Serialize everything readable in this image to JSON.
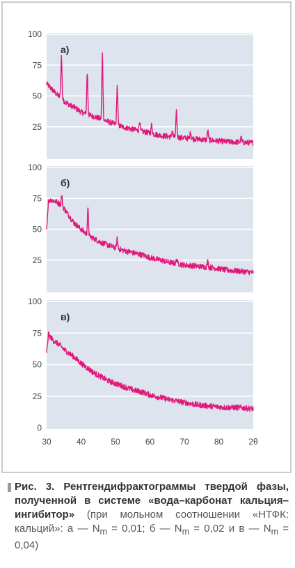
{
  "chart_data": [
    {
      "type": "line",
      "panel_label": "а)",
      "ylim": [
        0,
        100
      ],
      "xlim": [
        30,
        90
      ],
      "ytick_labels": [
        "100",
        "75",
        "50",
        "25"
      ],
      "color": "#e0187a",
      "series": [
        {
          "x": [
            30,
            31,
            32,
            33,
            34,
            35,
            36,
            37,
            38,
            39,
            40,
            42,
            44,
            46,
            48,
            50,
            52,
            55,
            58,
            60,
            63,
            66,
            70,
            74,
            78,
            82,
            86,
            90
          ],
          "values": [
            60,
            57,
            54,
            51,
            49,
            46,
            44,
            42,
            41,
            39,
            37,
            35,
            33,
            31,
            29,
            27,
            25,
            23,
            21,
            20,
            18,
            17,
            16,
            15,
            14,
            13,
            12.5,
            12
          ]
        }
      ],
      "peaks": [
        {
          "x": 34.3,
          "y": 82
        },
        {
          "x": 41.8,
          "y": 69
        },
        {
          "x": 46.2,
          "y": 84
        },
        {
          "x": 50.5,
          "y": 58
        },
        {
          "x": 57.0,
          "y": 30
        },
        {
          "x": 60.5,
          "y": 27
        },
        {
          "x": 66.5,
          "y": 22
        },
        {
          "x": 67.7,
          "y": 37
        },
        {
          "x": 71.8,
          "y": 21
        },
        {
          "x": 76.8,
          "y": 22
        },
        {
          "x": 86.5,
          "y": 16
        }
      ]
    },
    {
      "type": "line",
      "panel_label": "б)",
      "ylim": [
        0,
        100
      ],
      "xlim": [
        30,
        90
      ],
      "ytick_labels": [
        "100",
        "75",
        "50",
        "25"
      ],
      "color": "#e0187a",
      "series": [
        {
          "x": [
            30,
            30.5,
            31,
            32,
            33,
            34,
            35,
            36,
            37,
            38,
            40,
            42,
            44,
            46,
            48,
            50,
            52,
            55,
            58,
            60,
            63,
            66,
            70,
            74,
            78,
            82,
            86,
            90
          ],
          "values": [
            50,
            72,
            74,
            73,
            72,
            70,
            67,
            63,
            59,
            55,
            50,
            45,
            42,
            39,
            37,
            35,
            33,
            31,
            29,
            27,
            25,
            23,
            21,
            20,
            19,
            17,
            16,
            15
          ]
        }
      ],
      "peaks": [
        {
          "x": 34.4,
          "y": 77
        },
        {
          "x": 42.0,
          "y": 66
        },
        {
          "x": 50.5,
          "y": 42
        },
        {
          "x": 67.8,
          "y": 26
        },
        {
          "x": 76.8,
          "y": 24
        }
      ]
    },
    {
      "type": "line",
      "panel_label": "в)",
      "ylim": [
        0,
        100
      ],
      "xlim": [
        30,
        90
      ],
      "ytick_labels": [
        "100",
        "75",
        "50",
        "25",
        "0"
      ],
      "xtick_labels": [
        "30",
        "40",
        "50",
        "60",
        "70",
        "80",
        "2θ"
      ],
      "color": "#e0187a",
      "series": [
        {
          "x": [
            30,
            30.5,
            31,
            32,
            33,
            34,
            35,
            36,
            38,
            40,
            42,
            44,
            46,
            48,
            50,
            52,
            55,
            58,
            60,
            63,
            66,
            70,
            74,
            78,
            82,
            86,
            90
          ],
          "values": [
            58,
            74,
            72,
            69,
            67,
            65,
            62,
            60,
            56,
            51,
            47,
            43,
            40,
            37,
            35,
            33,
            30,
            28,
            26,
            24,
            22,
            20,
            18,
            17,
            16,
            16,
            15
          ]
        }
      ],
      "peaks": []
    }
  ],
  "caption": {
    "bold": "Рис. 3. Рентгендифрактограммы твердой фазы, полученной в системе «вода–карбонат кальция–ингибитор»",
    "normal": " (при мольном соотношении «НТФК: кальций»: а — N",
    "sub": "m",
    "normal2": " = 0,01; б — N",
    "sub2": "m",
    "normal3": " = 0,02 и в — N",
    "sub3": "m",
    "normal4": " = 0,04)"
  }
}
